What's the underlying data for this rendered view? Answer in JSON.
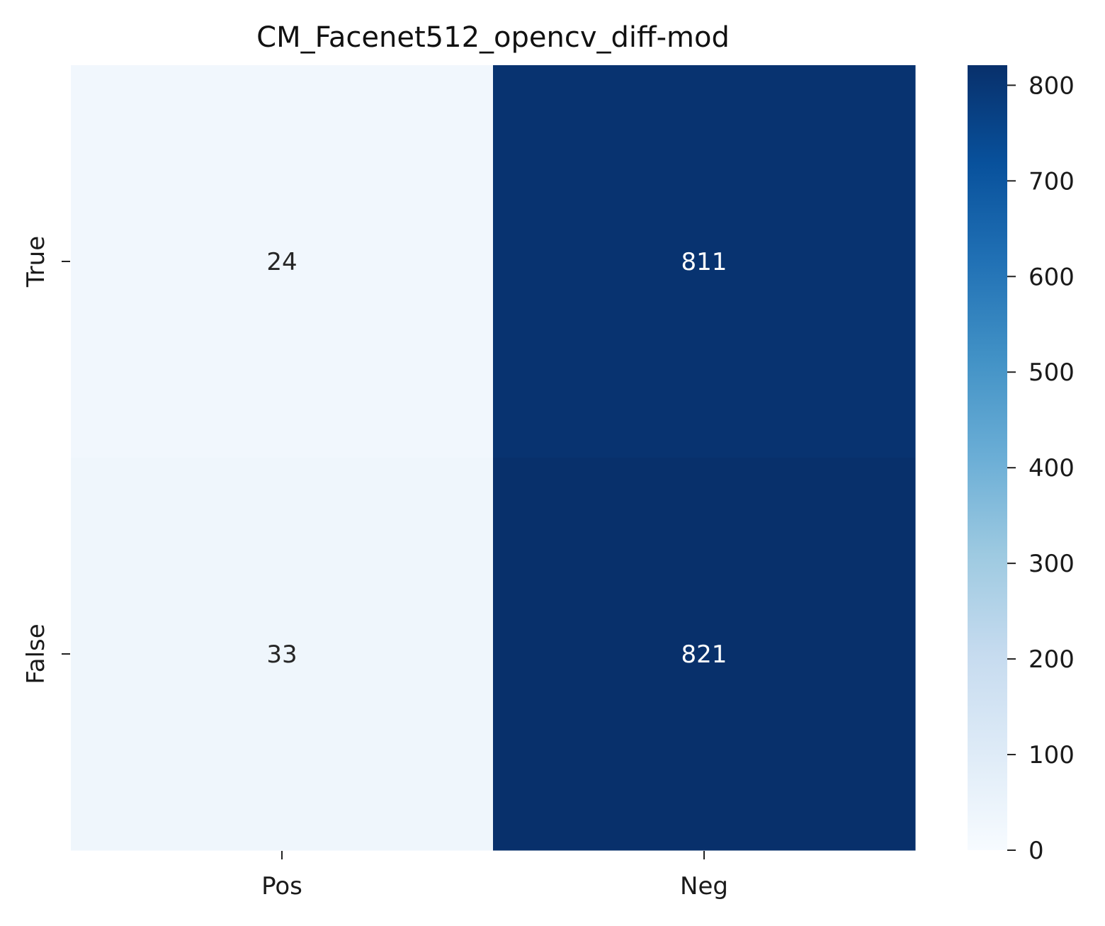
{
  "chart_data": {
    "type": "heatmap",
    "title": "CM_Facenet512_opencv_diff-mod",
    "x_labels": [
      "Pos",
      "Neg"
    ],
    "y_labels": [
      "True",
      "False"
    ],
    "values": [
      [
        24,
        811
      ],
      [
        33,
        821
      ]
    ],
    "colorbar": {
      "min": 0,
      "max": 821,
      "ticks": [
        0,
        100,
        200,
        300,
        400,
        500,
        600,
        700,
        800
      ],
      "colormap": "Blues"
    },
    "grid": false
  }
}
